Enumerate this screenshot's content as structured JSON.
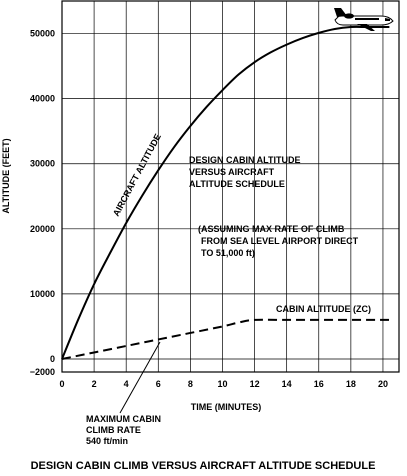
{
  "chart_data": {
    "type": "line",
    "title": "DESIGN CABIN CLIMB VERSUS AIRCRAFT ALTITUDE SCHEDULE",
    "xlabel": "TIME (MINUTES)",
    "ylabel": "ALTITUDE (FEET)",
    "xlim": [
      0,
      21
    ],
    "ylim": [
      -2000,
      55000
    ],
    "grid": true,
    "x_ticks": [
      "0",
      "2",
      "4",
      "6",
      "8",
      "10",
      "12",
      "14",
      "16",
      "18",
      "20"
    ],
    "y_ticks": [
      "−2000",
      "0",
      "10000",
      "20000",
      "30000",
      "40000",
      "50000"
    ],
    "series": [
      {
        "name": "AIRCRAFT ALTITUDE",
        "style": "solid",
        "x": [
          0,
          1,
          2,
          3,
          4,
          5,
          6,
          7,
          8,
          9,
          10,
          11,
          12,
          13,
          14,
          15,
          16,
          17,
          18,
          19,
          20,
          20.4
        ],
        "y": [
          0,
          6000,
          11500,
          16300,
          20900,
          25100,
          29000,
          32600,
          35800,
          38700,
          41300,
          43700,
          45600,
          47100,
          48300,
          49300,
          50100,
          50700,
          51000,
          51000,
          51000,
          51000
        ]
      },
      {
        "name": "CABIN ALTITUDE (ZC)",
        "style": "dashed",
        "x": [
          0,
          2,
          4,
          6,
          8,
          10,
          11,
          12,
          14,
          16,
          18,
          20,
          20.4
        ],
        "y": [
          0,
          1000,
          2000,
          3000,
          4000,
          5000,
          5600,
          6000,
          6000,
          6000,
          6000,
          6000,
          6000
        ]
      }
    ],
    "annotations": [
      "AIRCRAFT ALTITUDE",
      "DESIGN CABIN ALTITUDE VERSUS AIRCRAFT ALTITUDE SCHEDULE",
      "(ASSUMING MAX RATE OF CLIMB FROM SEA LEVEL AIRPORT DIRECT TO 51,000 ft)",
      "CABIN ALTITUDE (ZC)",
      "MAXIMUM CABIN CLIMB RATE 540 ft/min"
    ],
    "annotation_lines": {
      "design": [
        "DESIGN CABIN ALTITUDE",
        "VERSUS AIRCRAFT",
        "ALTITUDE SCHEDULE"
      ],
      "assuming": [
        "(ASSUMING MAX RATE OF CLIMB",
        "FROM SEA LEVEL AIRPORT DIRECT",
        "TO 51,000 ft)"
      ],
      "maxcabin": [
        "MAXIMUM CABIN",
        "CLIMB RATE",
        "540 ft/min"
      ]
    }
  }
}
